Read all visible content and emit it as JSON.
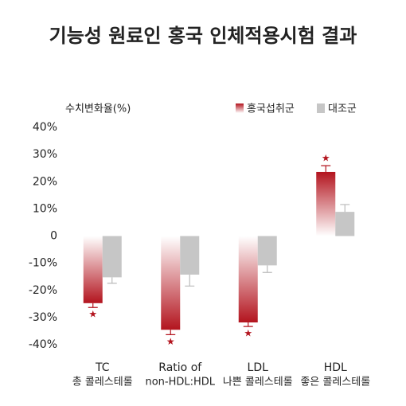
{
  "chart_data": {
    "type": "bar",
    "title": "기능성 원료인 홍국 인체적용시험 결과",
    "ylabel": "수치변화율(%)",
    "categories": [
      [
        "TC",
        "총 콜레스테롤"
      ],
      [
        "Ratio of",
        "non-HDL:HDL"
      ],
      [
        "LDL",
        "나쁜 콜레스테롤"
      ],
      [
        "HDL",
        "좋은 콜레스테롤"
      ]
    ],
    "series": [
      {
        "name": "홍국섭취군",
        "color": "#b3141e",
        "values": [
          -24.7,
          -34.5,
          -31.8,
          23.6
        ],
        "errors": [
          1.6,
          1.8,
          1.5,
          2.3
        ],
        "markers": [
          "★",
          "★",
          "★",
          "★"
        ]
      },
      {
        "name": "대조군",
        "color": "#c6c6c6",
        "values": [
          -15.2,
          -14.2,
          -10.8,
          8.9
        ],
        "errors": [
          2.2,
          4.2,
          2.6,
          2.7
        ]
      }
    ],
    "ylim": [
      -40,
      40
    ],
    "yticks": [
      {
        "value": 40,
        "label": "40%"
      },
      {
        "value": 30,
        "label": "30%"
      },
      {
        "value": 20,
        "label": "20%"
      },
      {
        "value": 10,
        "label": "10%"
      },
      0,
      {
        "value": -10,
        "label": "-10%"
      },
      {
        "value": -20,
        "label": "-20%"
      },
      {
        "value": -30,
        "label": "-30%"
      },
      {
        "value": -40,
        "label": "-40%"
      }
    ],
    "legend": "top-right"
  }
}
